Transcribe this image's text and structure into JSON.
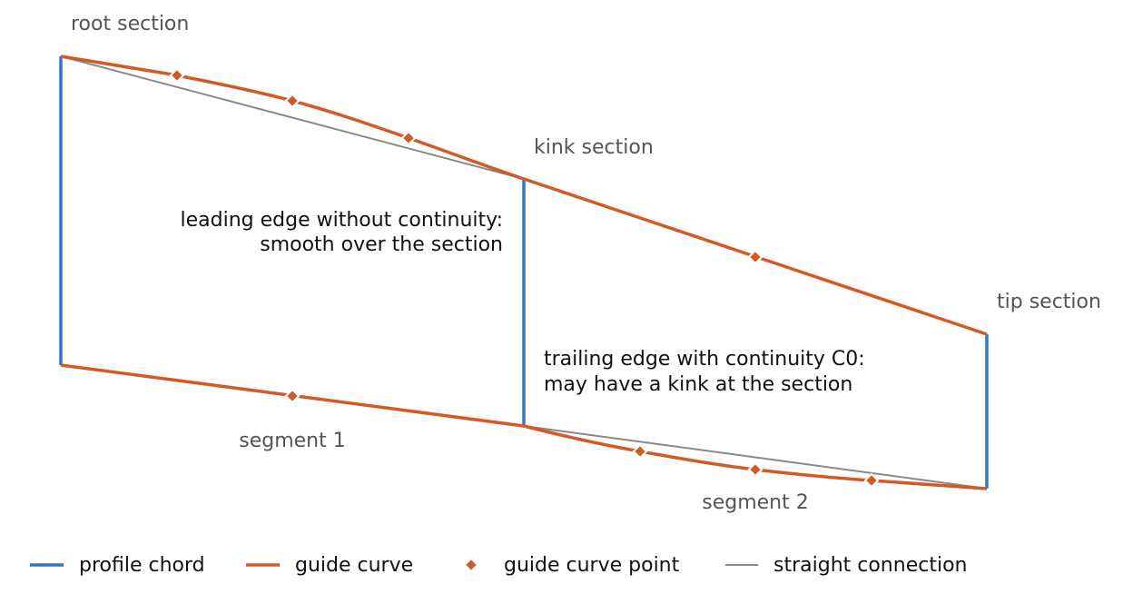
{
  "sections": {
    "root": "root section",
    "kink": "kink section",
    "tip": "tip section"
  },
  "segments": [
    "segment 1",
    "segment 2"
  ],
  "annotations": [
    {
      "lines": [
        "leading edge without continuity:",
        "smooth over the section"
      ]
    },
    {
      "lines": [
        "trailing edge with continuity C0:",
        "may have a kink at the section"
      ]
    }
  ],
  "legend": [
    "profile chord",
    "guide curve",
    "guide curve point",
    "straight connection"
  ]
}
